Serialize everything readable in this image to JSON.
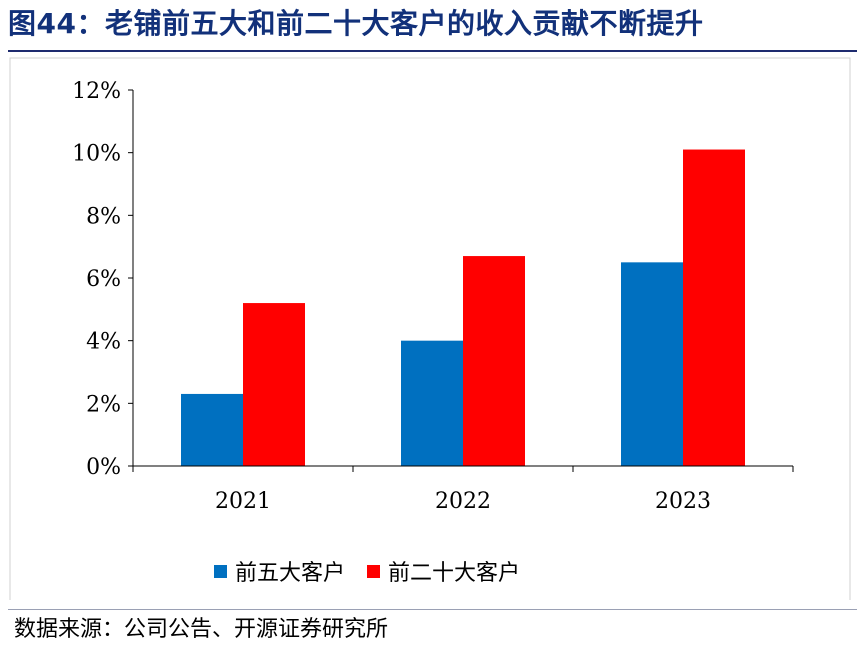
{
  "figure": {
    "title": "图44：老铺前五大和前二十大客户的收入贡献不断提升",
    "source": "数据来源：公司公告、开源证券研究所"
  },
  "chart_data": {
    "type": "bar",
    "categories": [
      "2021",
      "2022",
      "2023"
    ],
    "series": [
      {
        "name": "前五大客户",
        "values": [
          2.3,
          4.0,
          6.5
        ],
        "color": "#0070c0"
      },
      {
        "name": "前二十大客户",
        "values": [
          5.2,
          6.7,
          10.1
        ],
        "color": "#ff0000"
      }
    ],
    "ylim": [
      0,
      12
    ],
    "yticks": [
      "0%",
      "2%",
      "4%",
      "6%",
      "8%",
      "10%",
      "12%"
    ],
    "ytick_values": [
      0,
      2,
      4,
      6,
      8,
      10,
      12
    ],
    "grid": false,
    "legend_position": "bottom-center"
  }
}
